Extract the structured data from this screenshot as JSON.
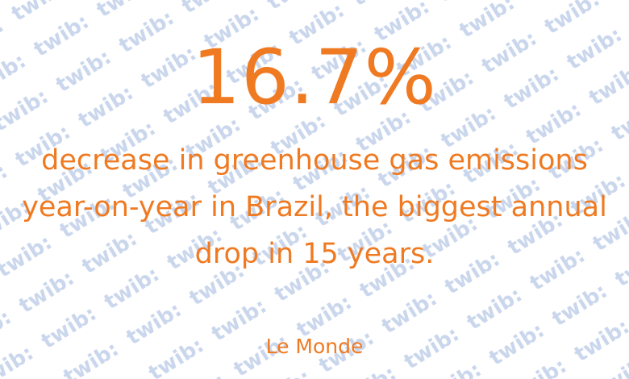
{
  "watermark": {
    "text": "twib:",
    "color": "#c9d6ec"
  },
  "stat": {
    "value": "16.7%",
    "color": "#ef7a22"
  },
  "statement": {
    "text": "decrease in greenhouse gas emissions year-on-year in Brazil, the biggest annual drop in 15 years."
  },
  "source": {
    "text": "Le Monde"
  }
}
